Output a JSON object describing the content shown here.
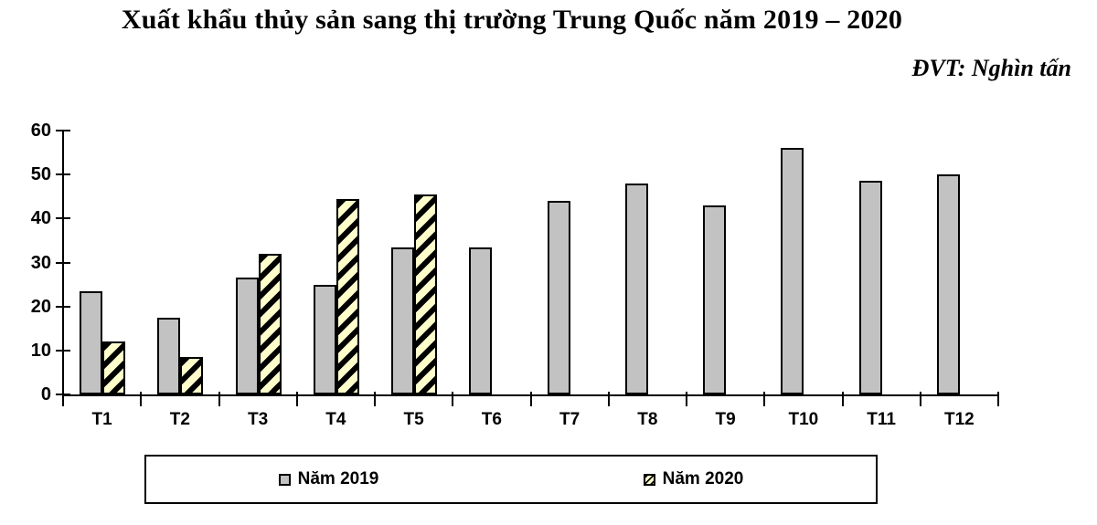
{
  "title": "Xuất khẩu thủy sản sang thị trường Trung Quốc năm 2019 – 2020",
  "unit_label": "ĐVT: Nghìn tấn",
  "colors": {
    "background": "#ffffff",
    "axis": "#000000",
    "text": "#000000",
    "series_2019_fill": "#c2c2c2",
    "series_2020_fill": "#ffffcc",
    "series_2020_hatch": "#000000",
    "bar_border": "#000000"
  },
  "legend": {
    "items": [
      {
        "label": "Năm 2019",
        "swatch": "solid-gray"
      },
      {
        "label": "Năm 2020",
        "swatch": "diagonal-hatch"
      }
    ]
  },
  "chart_data": {
    "type": "bar",
    "title": "Xuất khẩu thủy sản sang thị trường Trung Quốc năm 2019 – 2020",
    "unit": "Nghìn tấn",
    "categories": [
      "T1",
      "T2",
      "T3",
      "T4",
      "T5",
      "T6",
      "T7",
      "T8",
      "T9",
      "T10",
      "T11",
      "T12"
    ],
    "series": [
      {
        "name": "Năm 2019",
        "color": "#c2c2c2",
        "pattern": "solid",
        "values": [
          23.5,
          17.5,
          26.5,
          25,
          33.5,
          33.5,
          44,
          48,
          43,
          56,
          48.5,
          50
        ]
      },
      {
        "name": "Năm 2020",
        "color": "#ffffcc",
        "pattern": "diagonal-hatch",
        "values": [
          12,
          8.5,
          32,
          44.5,
          45.5,
          null,
          null,
          null,
          null,
          null,
          null,
          null
        ]
      }
    ],
    "xlabel": "",
    "ylabel": "Nghìn tấn",
    "ylim": [
      0,
      60
    ],
    "ytick_step": 10,
    "grid": false,
    "legend_position": "bottom"
  }
}
